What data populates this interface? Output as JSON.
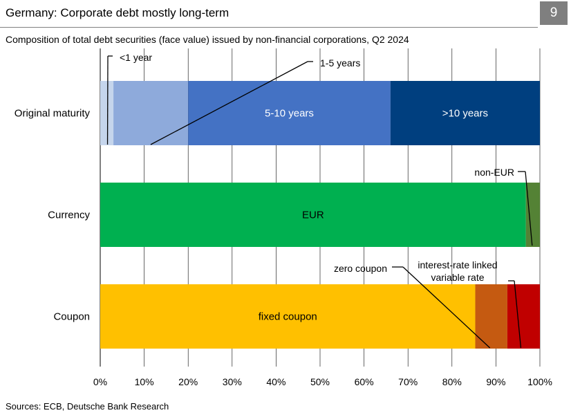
{
  "header": {
    "title": "Germany: Corporate debt mostly long-term",
    "page_number": "9"
  },
  "chart_data": {
    "type": "bar",
    "orientation": "horizontal",
    "stacked": true,
    "subtitle": "Composition of total debt securities (face value) issued by non-financial corporations, Q2 2024",
    "categories": [
      "Original maturity",
      "Currency",
      "Coupon"
    ],
    "xlim": [
      0,
      100
    ],
    "x_ticks": [
      "0%",
      "10%",
      "20%",
      "30%",
      "40%",
      "50%",
      "60%",
      "70%",
      "80%",
      "90%",
      "100%"
    ],
    "grid": true,
    "rows": [
      {
        "category": "Original maturity",
        "segments": [
          {
            "name": "<1 year",
            "value": 3,
            "color": "#c5d5ec",
            "label_inside": false
          },
          {
            "name": "1-5 years",
            "value": 17,
            "color": "#8eaadb",
            "label_inside": false
          },
          {
            "name": "5-10 years",
            "value": 46,
            "color": "#4472c4",
            "label_inside": true
          },
          {
            "name": ">10 years",
            "value": 34,
            "color": "#003f7f",
            "label_inside": true
          }
        ]
      },
      {
        "category": "Currency",
        "segments": [
          {
            "name": "EUR",
            "value": 96.8,
            "color": "#00b050",
            "label_inside": true
          },
          {
            "name": "non-EUR",
            "value": 3.2,
            "color": "#548235",
            "label_inside": false
          }
        ]
      },
      {
        "category": "Coupon",
        "segments": [
          {
            "name": "fixed coupon",
            "value": 85.3,
            "color": "#ffc000",
            "label_inside": true
          },
          {
            "name": "zero coupon",
            "value": 7.3,
            "color": "#c55a11",
            "label_inside": false
          },
          {
            "name": "interest-rate linked variable rate",
            "value": 7.4,
            "color": "#c00000",
            "label_inside": false
          }
        ]
      }
    ],
    "callouts": [
      {
        "text": "<1 year"
      },
      {
        "text": "1-5 years"
      },
      {
        "text": "non-EUR"
      },
      {
        "text": "zero coupon"
      },
      {
        "text_lines": [
          "interest-rate linked",
          "variable rate"
        ]
      }
    ]
  },
  "footer": {
    "source": "Sources: ECB, Deutsche Bank Research"
  }
}
